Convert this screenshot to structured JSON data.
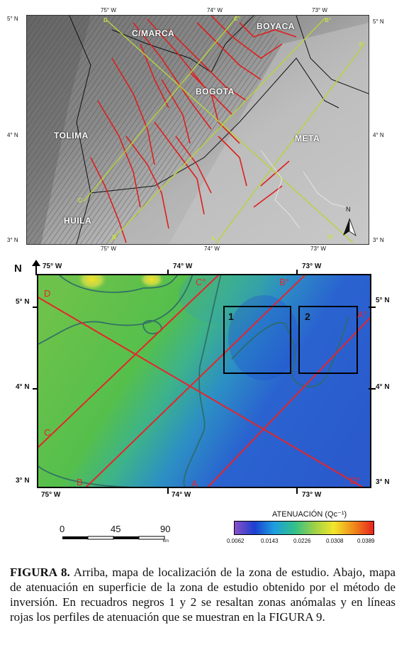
{
  "top_map": {
    "lon_labels_top": [
      "75° W",
      "74° W",
      "73° W"
    ],
    "lon_labels_bottom": [
      "75° W",
      "74° W",
      "73° W"
    ],
    "lat_labels_left": [
      "5° N",
      "4° N",
      "3° N"
    ],
    "lat_labels_right": [
      "5° N",
      "4° N",
      "3° N"
    ],
    "regions": [
      "C/MARCA",
      "BOYACA",
      "BOGOTA",
      "TOLIMA",
      "META",
      "HUILA"
    ],
    "profile_labels": [
      "D",
      "C°",
      "B°",
      "A°",
      "C",
      "B",
      "A",
      "D°"
    ],
    "north_label": "N"
  },
  "bottom_map": {
    "north_label": "N",
    "lon_labels_top": [
      "75° W",
      "74° W",
      "73° W"
    ],
    "lon_labels_bottom": [
      "75° W",
      "74° W",
      "73° W"
    ],
    "lat_labels_left": [
      "5° N",
      "4° N",
      "3° N"
    ],
    "lat_labels_right": [
      "5° N",
      "4° N",
      "3° N"
    ],
    "profile_labels": [
      "D",
      "C°",
      "B°",
      "A°",
      "C",
      "B",
      "A",
      "D°"
    ],
    "box_labels": [
      "1",
      "2"
    ],
    "line_color": "#e4262b",
    "box_color": "#000000"
  },
  "scale_bar": {
    "ticks": [
      "0",
      "45",
      "90"
    ],
    "unit": "km"
  },
  "legend": {
    "title": "ATENUACIÓN (Qc⁻¹)",
    "ticks": [
      "0.0062",
      "0.0143",
      "0.0226",
      "0.0308",
      "0.0389"
    ],
    "colors": [
      "#8a4fc7",
      "#1c3fd0",
      "#1d9ee0",
      "#30c08a",
      "#9ad04a",
      "#f2e62a",
      "#f08a1c",
      "#e8231e"
    ]
  },
  "caption": {
    "label": "FIGURA 8.",
    "text": " Arriba, mapa de localización de la zona de estudio. Abajo, mapa de atenuación  en superficie de la zona de estudio obtenido por el método de  inversión. En recuadros negros 1 y 2 se resaltan zonas anómalas y en líneas rojas los perfiles de atenuación que se muestran en la FIGURA 9."
  }
}
